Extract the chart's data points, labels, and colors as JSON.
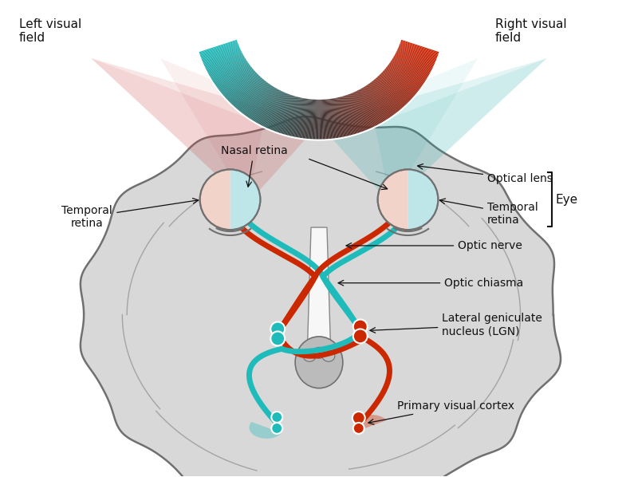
{
  "background_color": "#ffffff",
  "brain_color": "#d8d8d8",
  "brain_outline_color": "#707070",
  "red_color": "#cc2800",
  "cyan_color": "#1fbbbb",
  "red_light": "#e8b0a0",
  "cyan_light": "#a8dde0",
  "text_color": "#111111",
  "labels": {
    "left_visual_field": "Left visual\nfield",
    "right_visual_field": "Right visual\nfield",
    "nasal_retina": "Nasal retina",
    "temporal_retina_left": "Temporal\nretina",
    "temporal_retina_right": "Temporal\nretina",
    "optical_lens": "Optical lens",
    "optic_nerve": "Optic nerve",
    "optic_chiasma": "Optic chiasma",
    "lgn": "Lateral geniculate\nnucleus (LGN)",
    "primary_visual_cortex": "Primary visual cortex",
    "eye": "Eye"
  }
}
